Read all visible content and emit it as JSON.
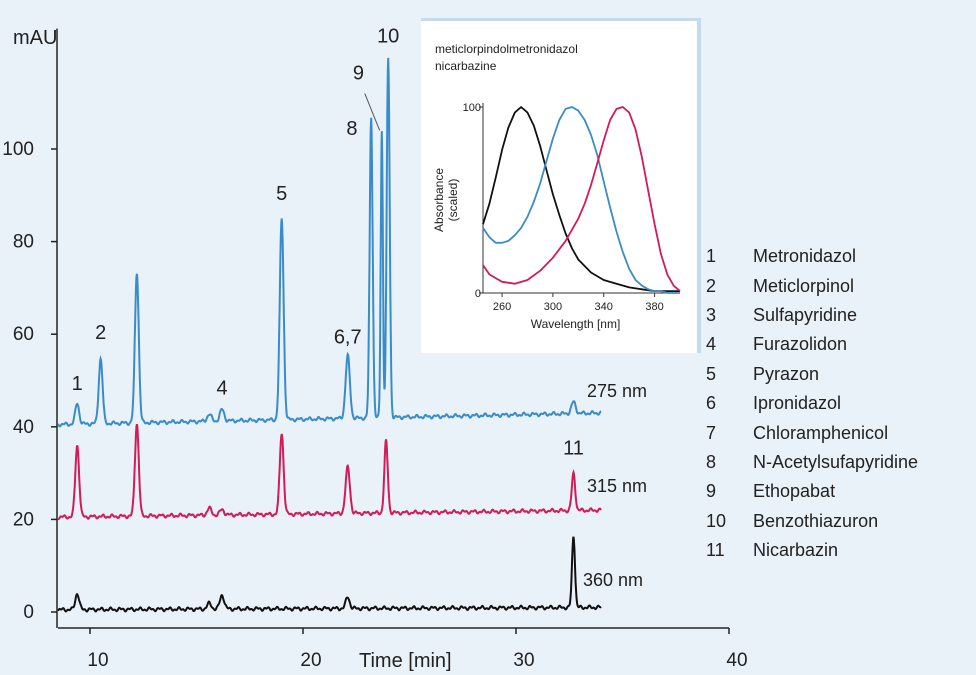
{
  "chart_data": [
    {
      "type": "line",
      "ylabel": "mAU",
      "xlabel": "Time [min]",
      "xlim": [
        8.5,
        40
      ],
      "ylim": [
        -4,
        126
      ],
      "x_ticks": [
        10,
        20,
        30,
        40
      ],
      "y_ticks": [
        0,
        20,
        40,
        60,
        80,
        100
      ],
      "series": [
        {
          "name": "275 nm",
          "color": "#3a8cc8",
          "baseline": 40.5,
          "drift_end": 43,
          "x_end": 34,
          "peaks": [
            {
              "x": 9.4,
              "h": 4.5,
              "w": 0.09
            },
            {
              "x": 10.5,
              "h": 14,
              "w": 0.09
            },
            {
              "x": 12.2,
              "h": 32.5,
              "w": 0.09
            },
            {
              "x": 15.6,
              "h": 1.5,
              "w": 0.1
            },
            {
              "x": 16.2,
              "h": 2.5,
              "w": 0.1
            },
            {
              "x": 19.0,
              "h": 43.5,
              "w": 0.09
            },
            {
              "x": 22.1,
              "h": 13.5,
              "w": 0.1
            },
            {
              "x": 23.2,
              "h": 65,
              "w": 0.07
            },
            {
              "x": 23.7,
              "h": 62,
              "w": 0.05
            },
            {
              "x": 24.0,
              "h": 77.5,
              "w": 0.07
            },
            {
              "x": 32.7,
              "h": 2.5,
              "w": 0.1
            }
          ]
        },
        {
          "name": "315 nm",
          "color": "#d01c58",
          "baseline": 20.5,
          "drift_end": 22,
          "x_end": 34,
          "peaks": [
            {
              "x": 9.4,
              "h": 15.5,
              "w": 0.09
            },
            {
              "x": 12.2,
              "h": 20,
              "w": 0.09
            },
            {
              "x": 15.6,
              "h": 1.5,
              "w": 0.1
            },
            {
              "x": 16.2,
              "h": 1.2,
              "w": 0.1
            },
            {
              "x": 19.0,
              "h": 17.5,
              "w": 0.09
            },
            {
              "x": 22.1,
              "h": 10,
              "w": 0.1
            },
            {
              "x": 23.9,
              "h": 15.5,
              "w": 0.08
            },
            {
              "x": 32.7,
              "h": 8,
              "w": 0.08
            }
          ]
        },
        {
          "name": "360 nm",
          "color": "#111111",
          "baseline": 0.5,
          "drift_end": 1,
          "x_end": 34,
          "peaks": [
            {
              "x": 9.4,
              "h": 3.5,
              "w": 0.09
            },
            {
              "x": 15.6,
              "h": 1.2,
              "w": 0.1
            },
            {
              "x": 16.2,
              "h": 3,
              "w": 0.1
            },
            {
              "x": 22.1,
              "h": 2.5,
              "w": 0.09
            },
            {
              "x": 32.7,
              "h": 15.5,
              "w": 0.07
            }
          ]
        }
      ],
      "peak_labels": [
        {
          "text": "1",
          "x": 9.4,
          "y": 48
        },
        {
          "text": "2",
          "x": 10.5,
          "y": 59
        },
        {
          "text": "4",
          "x": 16.2,
          "y": 47
        },
        {
          "text": "5",
          "x": 19.0,
          "y": 89
        },
        {
          "text": "6,7",
          "x": 22.1,
          "y": 58
        },
        {
          "text": "8",
          "x": 22.6,
          "y": 103
        },
        {
          "text": "9",
          "x": 22.8,
          "y": 115
        },
        {
          "text": "10",
          "x": 24.0,
          "y": 123
        },
        {
          "text": "11",
          "x": 32.7,
          "y": 34
        }
      ],
      "series_labels": [
        "275 nm",
        "315 nm",
        "360 nm"
      ]
    },
    {
      "type": "line",
      "title_lines": [
        "meticlorpindolmetronidazol",
        "nicarbazine"
      ],
      "xlabel": "Wavelength [nm]",
      "ylabel_lines": [
        "Absorbance",
        "(scaled)"
      ],
      "xlim": [
        245,
        400
      ],
      "ylim": [
        0,
        100
      ],
      "x_ticks": [
        260,
        300,
        340,
        380
      ],
      "y_ticks": [
        0,
        100
      ],
      "series": [
        {
          "color": "#111111",
          "x": [
            245,
            250,
            255,
            260,
            265,
            270,
            275,
            280,
            285,
            290,
            295,
            300,
            305,
            310,
            315,
            320,
            330,
            340,
            350,
            360,
            370,
            380,
            390,
            400
          ],
          "y": [
            37,
            48,
            62,
            77,
            89,
            97,
            100,
            97,
            90,
            79,
            66,
            53,
            42,
            32,
            24,
            18,
            11,
            7,
            5,
            3,
            2,
            1,
            1,
            1
          ]
        },
        {
          "color": "#3a8cc8",
          "x": [
            245,
            250,
            255,
            260,
            265,
            270,
            275,
            280,
            285,
            290,
            295,
            300,
            305,
            310,
            315,
            320,
            325,
            330,
            335,
            340,
            345,
            350,
            355,
            360,
            365,
            370,
            375,
            380,
            385,
            390,
            395,
            400
          ],
          "y": [
            35,
            30,
            27,
            27,
            28,
            31,
            35,
            41,
            49,
            59,
            71,
            83,
            93,
            99,
            100,
            98,
            93,
            85,
            74,
            60,
            46,
            33,
            22,
            13,
            7,
            4,
            2,
            1,
            1,
            0,
            0,
            0
          ]
        },
        {
          "color": "#d01c58",
          "x": [
            245,
            250,
            255,
            260,
            270,
            280,
            290,
            300,
            310,
            320,
            325,
            330,
            335,
            340,
            345,
            350,
            355,
            360,
            365,
            370,
            375,
            380,
            385,
            390,
            395,
            400
          ],
          "y": [
            15,
            10,
            8,
            6,
            5,
            7,
            12,
            19,
            28,
            40,
            48,
            58,
            70,
            82,
            93,
            99,
            100,
            97,
            88,
            73,
            55,
            37,
            21,
            10,
            4,
            1
          ]
        }
      ]
    }
  ],
  "legend": [
    {
      "num": "1",
      "name": "Metronidazol"
    },
    {
      "num": "2",
      "name": "Meticlorpinol"
    },
    {
      "num": "3",
      "name": "Sulfapyridine"
    },
    {
      "num": "4",
      "name": "Furazolidon"
    },
    {
      "num": "5",
      "name": "Pyrazon"
    },
    {
      "num": "6",
      "name": "Ipronidazol"
    },
    {
      "num": "7",
      "name": "Chloramphenicol"
    },
    {
      "num": "8",
      "name": "N-Acetylsufapyridine"
    },
    {
      "num": "9",
      "name": "Ethopabat"
    },
    {
      "num": "10",
      "name": "Benzothiazuron"
    },
    {
      "num": "11",
      "name": "Nicarbazin"
    }
  ]
}
